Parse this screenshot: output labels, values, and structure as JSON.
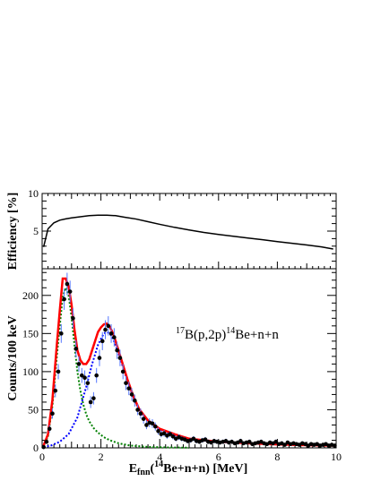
{
  "chart_data": [
    {
      "type": "line",
      "panel": "efficiency",
      "ylabel": "Efficiency [%]",
      "xlim": [
        0,
        10
      ],
      "ylim": [
        0,
        10
      ],
      "yticks": [
        5,
        10
      ],
      "series": [
        {
          "line_color": "#000000",
          "x": [
            0.05,
            0.2,
            0.4,
            0.6,
            0.8,
            1.0,
            1.3,
            1.6,
            1.9,
            2.2,
            2.5,
            2.8,
            3.2,
            3.6,
            4.0,
            4.5,
            5.0,
            5.5,
            6.0,
            6.5,
            7.0,
            7.5,
            8.0,
            8.5,
            9.0,
            9.5,
            9.9
          ],
          "y": [
            2.9,
            5.3,
            6.1,
            6.45,
            6.62,
            6.75,
            6.9,
            7.05,
            7.12,
            7.12,
            7.05,
            6.85,
            6.6,
            6.25,
            5.9,
            5.5,
            5.15,
            4.82,
            4.55,
            4.32,
            4.08,
            3.85,
            3.6,
            3.38,
            3.15,
            2.9,
            2.62
          ]
        }
      ]
    },
    {
      "type": "scatter",
      "panel": "counts",
      "xlabel_parts": {
        "main": "E",
        "sub": "fnn",
        "open": "(",
        "sup": "14",
        "rest": "Be+n+n) [MeV]"
      },
      "ylabel": "Counts/100 keV",
      "annotation_parts": {
        "sup1": "17",
        "mid": "B(p,2p)",
        "sup2": "14",
        "end": "Be+n+n"
      },
      "xlim": [
        0,
        10
      ],
      "ylim": [
        0,
        235
      ],
      "xticks": [
        0,
        2,
        4,
        6,
        8,
        10
      ],
      "yticks": [
        0,
        50,
        100,
        150,
        200
      ],
      "colors": {
        "data": "#000000",
        "errors": "#5577ff",
        "total": "#ff0000",
        "peak1": "#008000",
        "peak2": "#0000ff"
      },
      "data_points": {
        "x": [
          0.05,
          0.15,
          0.25,
          0.35,
          0.45,
          0.55,
          0.65,
          0.75,
          0.85,
          0.95,
          1.05,
          1.15,
          1.25,
          1.35,
          1.45,
          1.55,
          1.65,
          1.75,
          1.85,
          1.95,
          2.05,
          2.15,
          2.25,
          2.35,
          2.45,
          2.55,
          2.65,
          2.75,
          2.85,
          2.95,
          3.05,
          3.15,
          3.25,
          3.35,
          3.45,
          3.55,
          3.65,
          3.75,
          3.85,
          3.95,
          4.05,
          4.15,
          4.25,
          4.35,
          4.45,
          4.55,
          4.65,
          4.75,
          4.85,
          4.95,
          5.05,
          5.15,
          5.25,
          5.35,
          5.45,
          5.55,
          5.65,
          5.75,
          5.85,
          5.95,
          6.05,
          6.15,
          6.25,
          6.35,
          6.45,
          6.55,
          6.65,
          6.75,
          6.85,
          6.95,
          7.05,
          7.15,
          7.25,
          7.35,
          7.45,
          7.55,
          7.65,
          7.75,
          7.85,
          7.95,
          8.05,
          8.15,
          8.25,
          8.35,
          8.45,
          8.55,
          8.65,
          8.75,
          8.85,
          8.95,
          9.05,
          9.15,
          9.25,
          9.35,
          9.45,
          9.55,
          9.65,
          9.75,
          9.85,
          9.95
        ],
        "y": [
          1,
          8,
          25,
          45,
          75,
          100,
          150,
          195,
          215,
          205,
          170,
          130,
          110,
          95,
          92,
          85,
          60,
          65,
          95,
          118,
          140,
          155,
          160,
          150,
          145,
          128,
          118,
          100,
          85,
          78,
          70,
          62,
          50,
          45,
          38,
          30,
          33,
          32,
          28,
          22,
          18,
          19,
          16,
          18,
          15,
          12,
          14,
          12,
          11,
          9,
          10,
          12,
          9,
          8,
          10,
          11,
          8,
          7,
          9,
          8,
          7,
          8,
          9,
          7,
          8,
          6,
          7,
          9,
          6,
          7,
          8,
          5,
          6,
          7,
          8,
          6,
          5,
          7,
          6,
          8,
          5,
          6,
          4,
          7,
          5,
          6,
          5,
          4,
          6,
          5,
          3,
          5,
          4,
          5,
          3,
          4,
          5,
          3,
          4,
          3
        ]
      },
      "fits": {
        "peak1": {
          "x": [
            0.05,
            0.2,
            0.35,
            0.5,
            0.6,
            0.7,
            0.8,
            0.9,
            1.0,
            1.1,
            1.2,
            1.3,
            1.4,
            1.5,
            1.6,
            1.75,
            1.9,
            2.1,
            2.3,
            2.6,
            3.0,
            3.5,
            4.0,
            5.0
          ],
          "y": [
            2,
            15,
            55,
            120,
            160,
            198,
            210,
            200,
            172,
            135,
            100,
            75,
            57,
            44,
            35,
            26,
            20,
            14,
            10,
            6,
            3,
            1.5,
            0.8,
            0.2
          ]
        },
        "peak2": {
          "x": [
            0.05,
            0.3,
            0.6,
            0.9,
            1.2,
            1.5,
            1.7,
            1.9,
            2.0,
            2.1,
            2.2,
            2.3,
            2.4,
            2.5,
            2.7,
            2.9,
            3.1,
            3.3,
            3.6,
            4.0,
            4.5,
            5.0,
            6.0,
            7.0,
            8.0,
            9.0,
            10.0
          ],
          "y": [
            1,
            3,
            8,
            18,
            40,
            80,
            110,
            135,
            143,
            150,
            152,
            150,
            144,
            135,
            112,
            88,
            66,
            50,
            35,
            24,
            17,
            12,
            8,
            6,
            4.5,
            3.5,
            3
          ]
        },
        "total": {
          "x": [
            0.05,
            0.2,
            0.35,
            0.5,
            0.6,
            0.7,
            0.8,
            0.9,
            1.0,
            1.1,
            1.2,
            1.3,
            1.4,
            1.5,
            1.6,
            1.7,
            1.8,
            1.9,
            2.0,
            2.1,
            2.2,
            2.3,
            2.4,
            2.5,
            2.7,
            2.9,
            3.1,
            3.3,
            3.6,
            4.0,
            4.5,
            5.0,
            6.0,
            7.0,
            8.0,
            9.0,
            10.0
          ],
          "y": [
            3,
            18,
            63,
            135,
            180,
            222,
            222,
            212,
            188,
            155,
            128,
            115,
            110,
            110,
            116,
            128,
            140,
            152,
            158,
            162,
            163,
            159,
            151,
            140,
            115,
            90,
            68,
            51,
            36,
            25,
            18,
            12,
            8,
            6,
            4.5,
            3.5,
            3
          ]
        }
      }
    }
  ]
}
